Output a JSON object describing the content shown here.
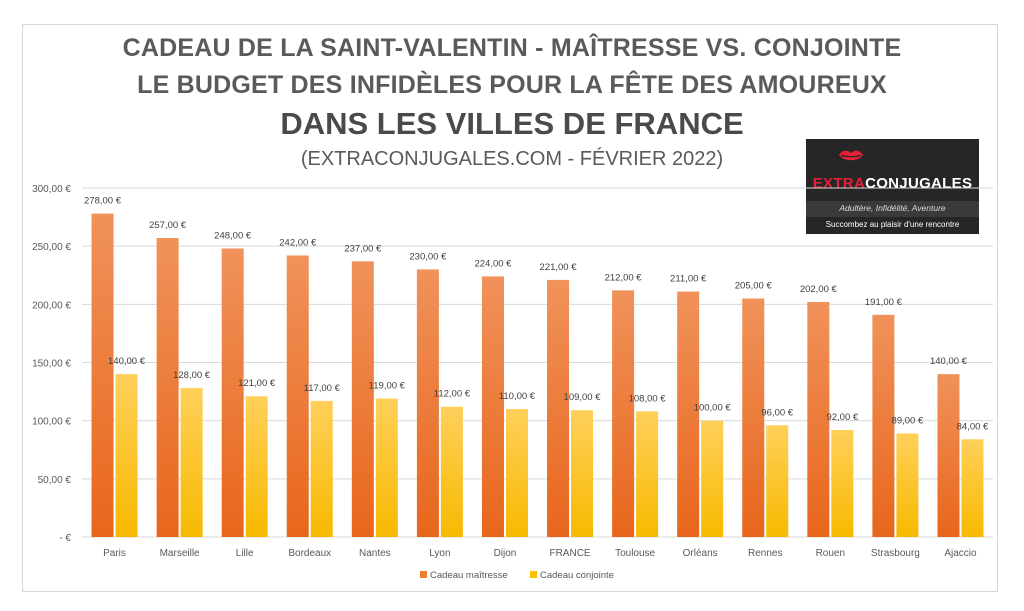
{
  "titles": {
    "line1": "CADEAU DE LA SAINT-VALENTIN - MAÎTRESSE VS. CONJOINTE",
    "line2": "LE BUDGET DES INFIDÈLES POUR LA FÊTE DES AMOUREUX",
    "line3": "DANS LES VILLES DE FRANCE",
    "line4": "(EXTRACONJUGALES.COM - FÉVRIER 2022)"
  },
  "logo": {
    "brand_part1": "EXTRA",
    "brand_part2": "CONJUGALES",
    "tagline": "Adultère, Infidélité, Aventure",
    "subtitle": "Succombez au plaisir d'une rencontre",
    "icon": "lips-icon",
    "colors": {
      "background": "#262626",
      "accent": "#e3223a"
    }
  },
  "chart_data": {
    "type": "bar",
    "title": "",
    "xlabel": "",
    "ylabel": "",
    "ylim": [
      0,
      300
    ],
    "yticks": [
      0,
      50,
      100,
      150,
      200,
      250,
      300
    ],
    "ytick_labels": [
      "-   €",
      "50,00 €",
      "100,00 €",
      "150,00 €",
      "200,00 €",
      "250,00 €",
      "300,00 €"
    ],
    "grid": true,
    "legend_position": "bottom",
    "categories": [
      "Paris",
      "Marseille",
      "Lille",
      "Bordeaux",
      "Nantes",
      "Lyon",
      "Dijon",
      "FRANCE",
      "Toulouse",
      "Orléans",
      "Rennes",
      "Rouen",
      "Strasbourg",
      "Ajaccio"
    ],
    "series": [
      {
        "name": "Cadeau maîtresse",
        "color": "#ed7d31",
        "values": [
          278,
          257,
          248,
          242,
          237,
          230,
          224,
          221,
          212,
          211,
          205,
          202,
          191,
          140
        ],
        "labels": [
          "278,00 €",
          "257,00 €",
          "248,00 €",
          "242,00 €",
          "237,00 €",
          "230,00 €",
          "224,00 €",
          "221,00 €",
          "212,00 €",
          "211,00 €",
          "205,00 €",
          "202,00 €",
          "191,00 €",
          "140,00 €"
        ]
      },
      {
        "name": "Cadeau conjointe",
        "color": "#ffc000",
        "values": [
          140,
          128,
          121,
          117,
          119,
          112,
          110,
          109,
          108,
          100,
          96,
          92,
          89,
          84
        ],
        "labels": [
          "140,00 €",
          "128,00 €",
          "121,00 €",
          "117,00 €",
          "119,00 €",
          "112,00 €",
          "110,00 €",
          "109,00 €",
          "108,00 €",
          "100,00 €",
          "96,00 €",
          "92,00 €",
          "89,00 €",
          "84,00 €"
        ]
      }
    ]
  }
}
